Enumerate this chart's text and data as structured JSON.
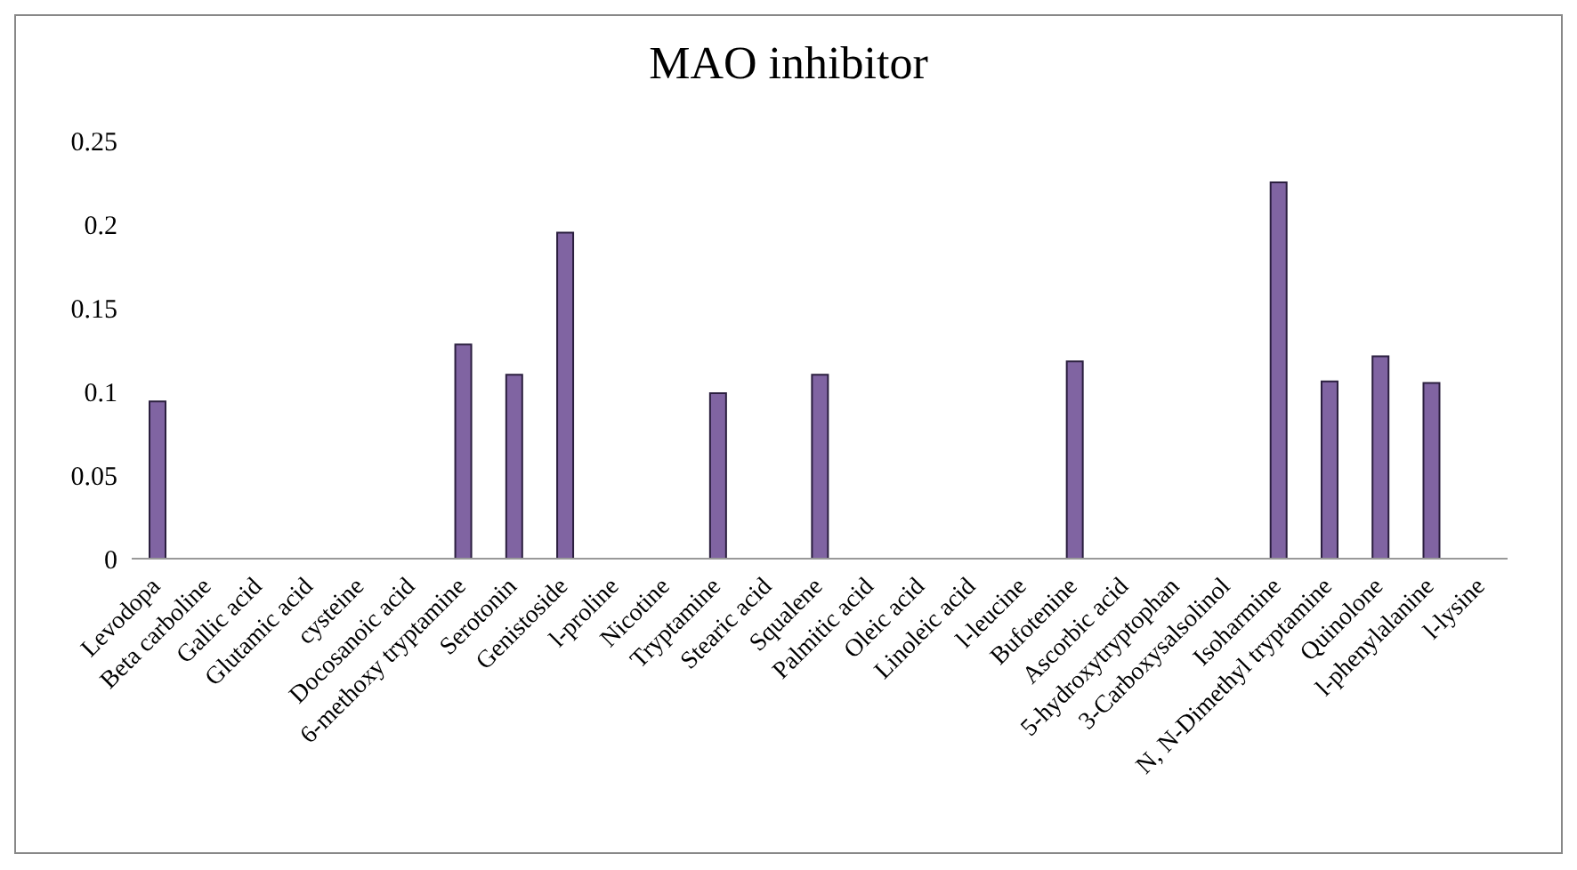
{
  "chart_data": {
    "type": "bar",
    "title": "MAO inhibitor",
    "categories": [
      "Levodopa",
      "Beta carboline",
      "Gallic acid",
      "Glutamic acid",
      "cysteine",
      "Docosanoic acid",
      "6-methoxy tryptamine",
      "Serotonin",
      "Genistoside",
      "l-proline",
      "Nicotine",
      "Tryptamine",
      "Stearic acid",
      "Squalene",
      "Palmitic acid",
      "Oleic acid",
      "Linoleic acid",
      "l-leucine",
      "Bufotenine",
      "Ascorbic acid",
      "5-hydroxytryptophan",
      "3-Carboxysalsolinol",
      "Isoharmine",
      "N, N-Dimethyl tryptamine",
      "Quinolone",
      "l-phenylalanine",
      "l-lysine"
    ],
    "values": [
      0.094,
      0,
      0,
      0,
      0,
      0,
      0.128,
      0.11,
      0.195,
      0,
      0,
      0.099,
      0,
      0.11,
      0,
      0,
      0,
      0,
      0.118,
      0,
      0,
      0,
      0.225,
      0.106,
      0.121,
      0.105,
      0
    ],
    "color": "#8064a2",
    "ylim": [
      0,
      0.25
    ],
    "yticks": [
      0,
      0.05,
      0.1,
      0.15,
      0.2,
      0.25
    ]
  }
}
